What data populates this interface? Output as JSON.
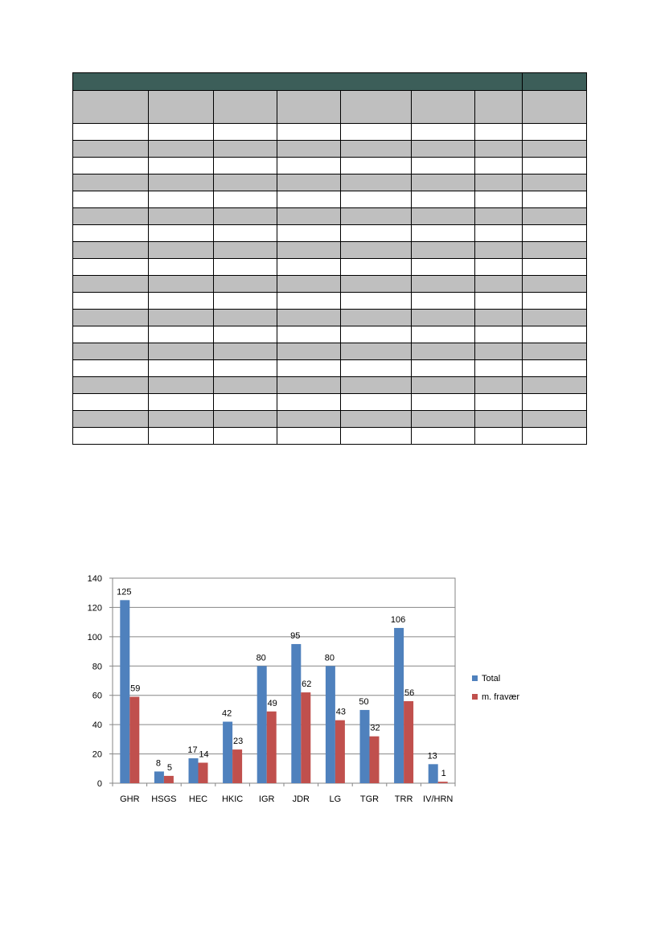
{
  "table": {
    "columns": 8,
    "body_rows": 19
  },
  "chart_data": {
    "type": "bar",
    "categories": [
      "GHR",
      "HSGS",
      "HEC",
      "HKIC",
      "IGR",
      "JDR",
      "LG",
      "TGR",
      "TRR",
      "IV/HRN"
    ],
    "series": [
      {
        "name": "Total",
        "values": [
          125,
          8,
          17,
          42,
          80,
          95,
          80,
          50,
          106,
          13
        ],
        "color": "#4f81bd"
      },
      {
        "name": "m. fravær",
        "values": [
          59,
          5,
          14,
          23,
          49,
          62,
          43,
          32,
          56,
          1
        ],
        "color": "#c0504d"
      }
    ],
    "ylim": [
      0,
      140
    ],
    "yticks": [
      0,
      20,
      40,
      60,
      80,
      100,
      120,
      140
    ],
    "grid": true,
    "legend": "right",
    "data_labels": true,
    "title": "",
    "xlabel": "",
    "ylabel": ""
  }
}
